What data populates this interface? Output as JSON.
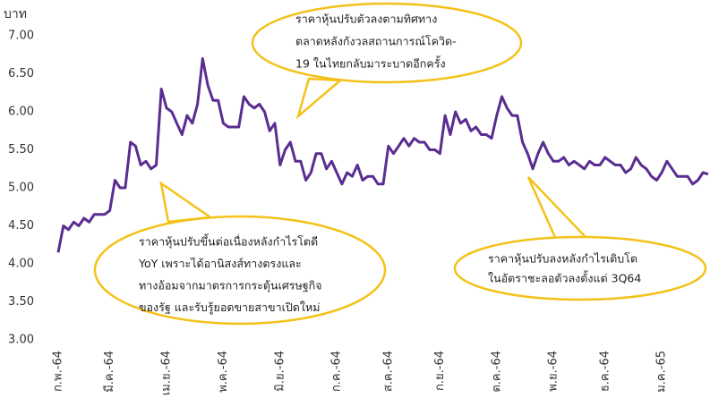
{
  "chart_data": {
    "type": "line",
    "ylabel": "บาท",
    "categories": [
      "ก.พ.-64",
      null,
      null,
      null,
      null,
      null,
      null,
      null,
      null,
      null,
      "มี.ค.-64",
      null,
      null,
      null,
      null,
      null,
      null,
      null,
      null,
      null,
      null,
      "เม.ย.-64",
      null,
      null,
      null,
      null,
      null,
      null,
      null,
      null,
      null,
      null,
      "พ.ค.-64",
      null,
      null,
      null,
      null,
      null,
      null,
      null,
      null,
      null,
      null,
      "มิ.ย.-64",
      null,
      null,
      null,
      null,
      null,
      null,
      null,
      null,
      null,
      null,
      "ก.ค.-64",
      null,
      null,
      null,
      null,
      null,
      null,
      null,
      null,
      null,
      "ส.ค.-64",
      null,
      null,
      null,
      null,
      null,
      null,
      null,
      null,
      null,
      "ก.ย.-64",
      null,
      null,
      null,
      null,
      null,
      null,
      null,
      null,
      null,
      null,
      "ต.ค.-64",
      null,
      null,
      null,
      null,
      null,
      null,
      null,
      null,
      null,
      null,
      "พ.ย.-64",
      null,
      null,
      null,
      null,
      null,
      null,
      null,
      null,
      null,
      "ธ.ค.-64",
      null,
      null,
      null,
      null,
      null,
      null,
      null,
      null,
      null,
      null,
      "ม.ค.-65",
      null,
      null,
      null,
      null,
      null,
      null,
      null,
      null,
      null
    ],
    "series": [
      {
        "name": null,
        "color": "#5a2d91",
        "values": [
          4.15,
          4.5,
          4.45,
          4.55,
          4.5,
          4.6,
          4.55,
          4.65,
          4.65,
          4.65,
          4.7,
          5.1,
          5.0,
          5.0,
          5.6,
          5.55,
          5.3,
          5.35,
          5.25,
          5.3,
          6.3,
          6.05,
          6.0,
          5.85,
          5.7,
          5.95,
          5.85,
          6.1,
          6.7,
          6.35,
          6.15,
          6.15,
          5.85,
          5.8,
          5.8,
          5.8,
          6.2,
          6.1,
          6.05,
          6.1,
          6.0,
          5.75,
          5.85,
          5.3,
          5.5,
          5.6,
          5.35,
          5.35,
          5.1,
          5.2,
          5.45,
          5.45,
          5.25,
          5.35,
          5.2,
          5.05,
          5.2,
          5.15,
          5.3,
          5.1,
          5.15,
          5.15,
          5.05,
          5.05,
          5.55,
          5.45,
          5.55,
          5.65,
          5.55,
          5.65,
          5.6,
          5.6,
          5.5,
          5.5,
          5.45,
          5.95,
          5.7,
          6.0,
          5.85,
          5.9,
          5.75,
          5.8,
          5.7,
          5.7,
          5.65,
          5.95,
          6.2,
          6.05,
          5.95,
          5.95,
          5.6,
          5.45,
          5.25,
          5.45,
          5.6,
          5.45,
          5.35,
          5.35,
          5.4,
          5.3,
          5.35,
          5.3,
          5.25,
          5.35,
          5.3,
          5.3,
          5.4,
          5.35,
          5.3,
          5.3,
          5.2,
          5.25,
          5.4,
          5.3,
          5.25,
          5.15,
          5.1,
          5.2,
          5.35,
          5.25,
          5.15,
          5.15,
          5.15,
          5.05,
          5.1,
          5.2,
          5.18
        ]
      }
    ],
    "ylim": [
      3,
      7
    ],
    "yticks": [
      {
        "value": 3,
        "label": "3.00"
      },
      {
        "value": 3.5,
        "label": "3.50"
      },
      {
        "value": 4,
        "label": "4.00"
      },
      {
        "value": 4.5,
        "label": "4.50"
      },
      {
        "value": 5,
        "label": "5.00"
      },
      {
        "value": 5.5,
        "label": "5.50"
      },
      {
        "value": 6,
        "label": "6.00"
      },
      {
        "value": 6.5,
        "label": "6.50"
      },
      {
        "value": 7,
        "label": "7.00"
      }
    ],
    "grid": false,
    "annotations": [
      {
        "lines": [
          "ราคาหุ้นปรับตัวลงตามทิศทาง",
          "ตลาดหลังกังวลสถานการณ์โควิด-",
          "19 ในไทยกลับมาระบาดอีกครั้ง"
        ]
      },
      {
        "lines": [
          "ราคาหุ้นปรับขึ้นต่อเนื่องหลังกำไรโตดี",
          "YoY เพราะได้อานิสงส์ทางตรงและ",
          "ทางอ้อมจากมาตรการกระตุ้นเศรษฐกิจ",
          "ของรัฐ และรับรู้ยอดขายสาขาเปิดใหม่"
        ]
      },
      {
        "lines": [
          "ราคาหุ้นปรับลงหลังกำไรเติบโต",
          "ในอัตราชะลอตัวลงตั้งแต่ 3Q64"
        ]
      }
    ]
  }
}
